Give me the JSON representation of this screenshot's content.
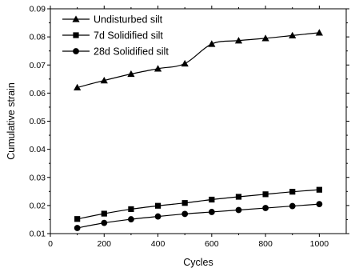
{
  "chart_data": {
    "type": "line",
    "title": "",
    "xlabel": "Cycles",
    "ylabel": "Cumulative strain",
    "xlim": [
      0,
      1100
    ],
    "ylim": [
      0.01,
      0.09
    ],
    "xticks": [
      0,
      200,
      400,
      600,
      800,
      1000
    ],
    "xtick_labels": [
      "0",
      "200",
      "400",
      "600",
      "800",
      "1000"
    ],
    "yticks": [
      0.01,
      0.02,
      0.03,
      0.04,
      0.05,
      0.06,
      0.07,
      0.08,
      0.09
    ],
    "ytick_labels": [
      "0.01",
      "0.02",
      "0.03",
      "0.04",
      "0.05",
      "0.06",
      "0.07",
      "0.08",
      "0.09"
    ],
    "grid": false,
    "legend_position": "top-left",
    "x": [
      100,
      200,
      300,
      400,
      500,
      600,
      700,
      800,
      900,
      1000
    ],
    "series": [
      {
        "name": "Undisturbed silt",
        "marker": "triangle",
        "color": "#000000",
        "values": [
          0.062,
          0.0645,
          0.0668,
          0.0687,
          0.0705,
          0.0775,
          0.0787,
          0.0795,
          0.0805,
          0.0815
        ]
      },
      {
        "name": "7d Solidified silt",
        "marker": "square",
        "color": "#000000",
        "values": [
          0.0152,
          0.0171,
          0.0187,
          0.0199,
          0.0209,
          0.0221,
          0.0231,
          0.024,
          0.0249,
          0.0256
        ]
      },
      {
        "name": "28d Solidified silt",
        "marker": "circle",
        "color": "#000000",
        "values": [
          0.012,
          0.0138,
          0.0151,
          0.0161,
          0.017,
          0.0177,
          0.0184,
          0.0191,
          0.0198,
          0.0205
        ]
      }
    ]
  }
}
